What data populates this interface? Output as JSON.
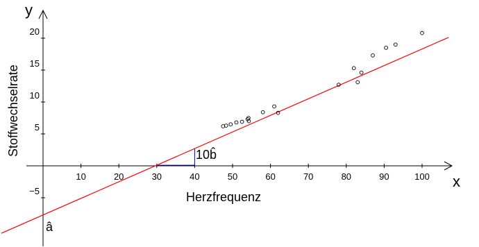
{
  "chart_data": {
    "type": "scatter",
    "xlabel": "Herzfrequenz",
    "ylabel": "Stoffwechselrate",
    "x_axis_name": "x",
    "y_axis_name": "y",
    "x_ticks": [
      "10",
      "20",
      "30",
      "40",
      "50",
      "60",
      "70",
      "80",
      "90",
      "100"
    ],
    "y_ticks": [
      "20",
      "15",
      "10",
      "5",
      "−5"
    ],
    "xlim": [
      -11,
      107
    ],
    "ylim": [
      -12.5,
      24
    ],
    "points": [
      {
        "x": 47.5,
        "y": 6.2
      },
      {
        "x": 48.3,
        "y": 6.3
      },
      {
        "x": 49.5,
        "y": 6.5
      },
      {
        "x": 51.0,
        "y": 6.8
      },
      {
        "x": 52.5,
        "y": 6.9
      },
      {
        "x": 54.0,
        "y": 7.3
      },
      {
        "x": 54.2,
        "y": 7.5
      },
      {
        "x": 54.3,
        "y": 7.0
      },
      {
        "x": 58.0,
        "y": 8.4
      },
      {
        "x": 61.0,
        "y": 9.3
      },
      {
        "x": 62.0,
        "y": 8.3
      },
      {
        "x": 78.0,
        "y": 12.7
      },
      {
        "x": 82.0,
        "y": 15.3
      },
      {
        "x": 83.0,
        "y": 13.1
      },
      {
        "x": 84.0,
        "y": 14.6
      },
      {
        "x": 87.0,
        "y": 17.3
      },
      {
        "x": 90.5,
        "y": 18.5
      },
      {
        "x": 93.0,
        "y": 19.0
      },
      {
        "x": 100.0,
        "y": 20.8
      }
    ],
    "regression": {
      "intercept": -7.7,
      "slope": 0.26,
      "color": "#ff0000"
    },
    "slope_triangle": {
      "x_start": 30,
      "x_end": 40,
      "color": "#0000cc"
    },
    "annotations": {
      "slope_label": "10b̂",
      "intercept_label": "â"
    },
    "point_color": "#000000",
    "axis_color": "#000000"
  }
}
